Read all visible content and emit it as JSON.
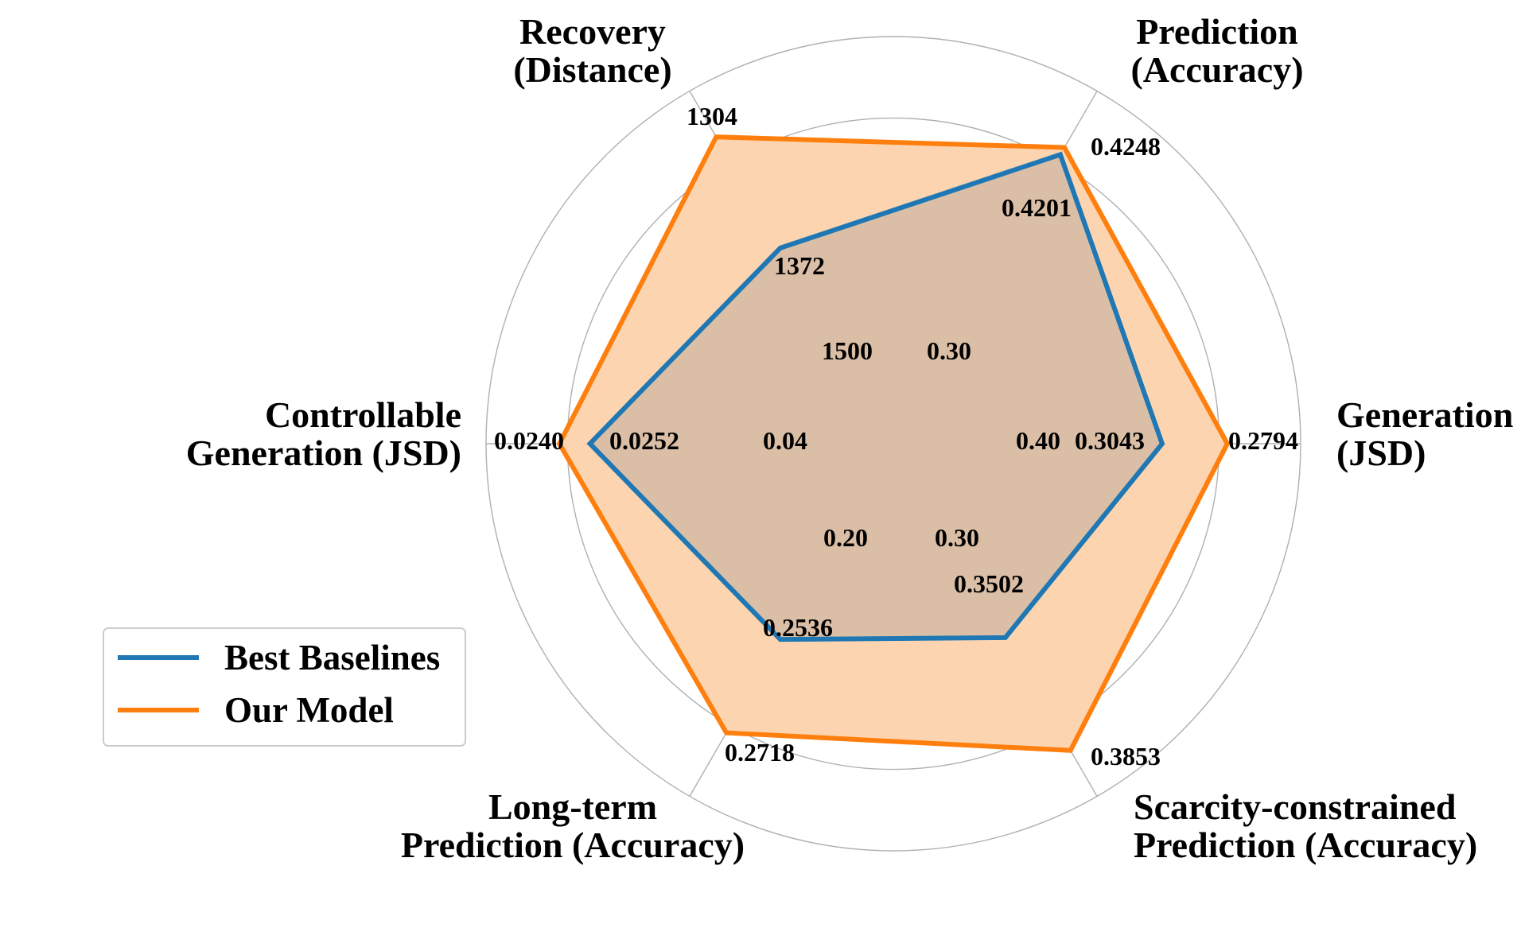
{
  "chart_data": {
    "type": "radar",
    "axes": [
      {
        "label": [
          "Generation",
          "(JSD)"
        ],
        "baseline": 0.3043,
        "ours": 0.2794,
        "inner_label": "0.40"
      },
      {
        "label": [
          "Prediction",
          "(Accuracy)"
        ],
        "baseline": 0.4201,
        "ours": 0.4248,
        "inner_label": "0.30"
      },
      {
        "label": [
          "Recovery",
          "(Distance)"
        ],
        "baseline": 1372,
        "ours": 1304,
        "inner_label": "1500"
      },
      {
        "label": [
          "Controllable",
          "Generation (JSD)"
        ],
        "baseline": 0.0252,
        "ours": 0.024,
        "inner_label": "0.04"
      },
      {
        "label": [
          "Long-term",
          "Prediction (Accuracy)"
        ],
        "baseline": 0.2536,
        "ours": 0.2718,
        "inner_label": "0.20"
      },
      {
        "label": [
          "Scarcity-constrained",
          "Prediction (Accuracy)"
        ],
        "baseline": 0.3502,
        "ours": 0.3853,
        "inner_label": "0.30"
      }
    ],
    "normalized_levels": {
      "note": "radial level of each point as fraction of outer ring",
      "baseline": [
        0.66,
        0.82,
        0.555,
        0.745,
        0.555,
        0.55
      ],
      "ours": [
        0.82,
        0.84,
        0.87,
        0.82,
        0.82,
        0.87
      ],
      "inner": 0.24
    },
    "rings": 5,
    "series": [
      {
        "name": "Best Baselines",
        "color": "#1f77b4"
      },
      {
        "name": "Our Model",
        "color": "#ff7f0e",
        "fill": "#fcd5b0"
      }
    ],
    "legend_position": "lower-left",
    "grid": true
  },
  "value_text": {
    "baseline": [
      "0.3043",
      "0.4201",
      "1372",
      "0.0252",
      "0.2536",
      "0.3502"
    ],
    "ours": [
      "0.2794",
      "0.4248",
      "1304",
      "0.0240",
      "0.2718",
      "0.3853"
    ]
  }
}
